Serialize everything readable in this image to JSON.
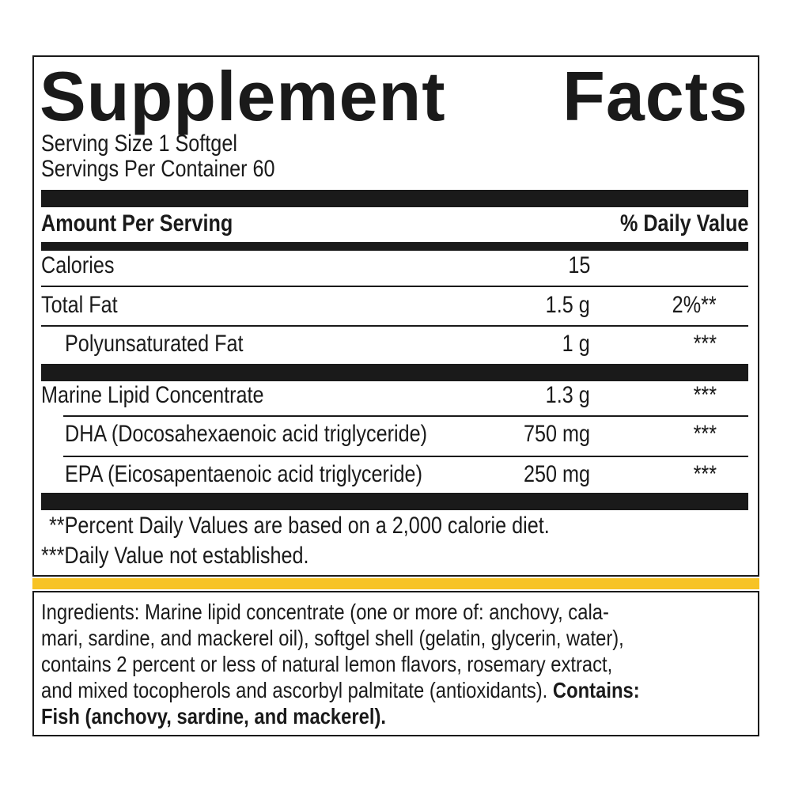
{
  "title": {
    "word1": "Supplement",
    "word2": "Facts"
  },
  "serving_size": "Serving Size 1 Softgel",
  "servings_per_container": "Servings Per Container 60",
  "header": {
    "amount": "Amount Per Serving",
    "daily_value": "% Daily Value"
  },
  "rows": [
    {
      "name": "Calories",
      "amount": "15",
      "dv": ""
    },
    {
      "name": "Total Fat",
      "amount": "1.5 g",
      "dv": "2%**"
    },
    {
      "name": "Polyunsaturated Fat",
      "amount": "1 g",
      "dv": "***"
    },
    {
      "name": "Marine Lipid Concentrate",
      "amount": "1.3 g",
      "dv": "***"
    },
    {
      "name": "DHA (Docosahexaenoic acid triglyceride)",
      "amount": "750 mg",
      "dv": "***"
    },
    {
      "name": "EPA (Eicosapentaenoic acid triglyceride)",
      "amount": "250 mg",
      "dv": "***"
    }
  ],
  "footnotes": [
    "**Percent Daily Values are based on a 2,000 calorie diet.",
    "***Daily Value not established."
  ],
  "ingredients": {
    "lines": [
      "Ingredients: Marine lipid concentrate (one or more of: anchovy, cala-",
      "mari, sardine, and mackerel oil), softgel shell (gelatin, glycerin, water),",
      "contains 2 percent or less of natural lemon flavors, rosemary extract,",
      "and mixed tocopherols and ascorbyl palmitate (antioxidants)."
    ],
    "contains_label": "Contains:",
    "allergens": "Fish (anchovy, sardine, and mackerel)."
  },
  "colors": {
    "accent_bar": "#f7c325",
    "ink": "#1a1a1a"
  }
}
